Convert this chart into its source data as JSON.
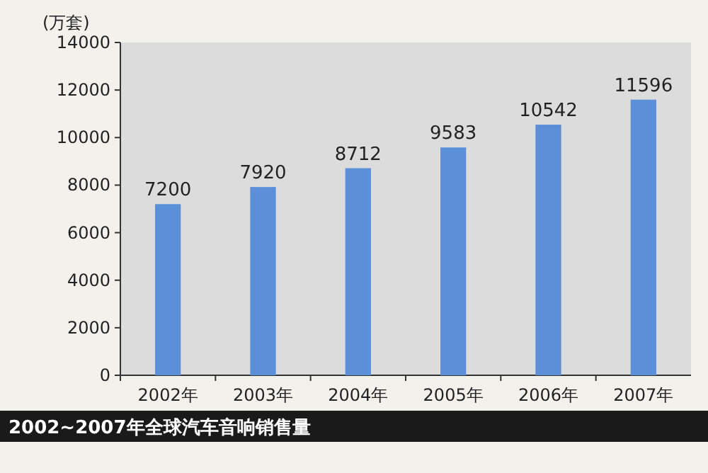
{
  "chart_data": {
    "type": "bar",
    "title": "2002~2007年全球汽车音响销售量",
    "ylabel": "(万套)",
    "categories": [
      "2002年",
      "2003年",
      "2004年",
      "2005年",
      "2006年",
      "2007年"
    ],
    "values": [
      7200,
      7920,
      8712,
      9583,
      10542,
      11596
    ],
    "color": "#5b8fd8",
    "ylim": [
      0,
      14000
    ],
    "yticks": [
      0,
      2000,
      4000,
      6000,
      8000,
      10000,
      12000,
      14000
    ],
    "data_labels": true,
    "grid": false
  }
}
